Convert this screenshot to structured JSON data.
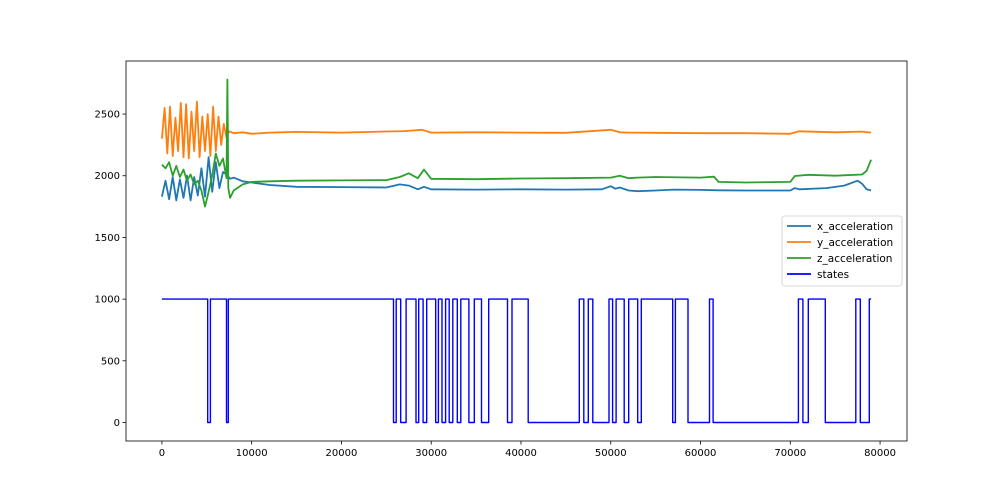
{
  "chart_data": {
    "type": "line",
    "title": "",
    "xlabel": "",
    "ylabel": "",
    "xlim": [
      -4000,
      83000
    ],
    "ylim": [
      -150,
      2930
    ],
    "xticks": [
      0,
      10000,
      20000,
      30000,
      40000,
      50000,
      60000,
      70000,
      80000
    ],
    "yticks": [
      0,
      500,
      1000,
      1500,
      2000,
      2500
    ],
    "grid": false,
    "legend_position": "center-right",
    "series": [
      {
        "name": "x_acceleration",
        "color": "#1f77b4",
        "x": [
          0,
          400,
          800,
          1200,
          1600,
          2000,
          2400,
          2800,
          3200,
          3600,
          4000,
          4400,
          4800,
          5200,
          5600,
          6000,
          6400,
          6800,
          7200,
          7600,
          8000,
          9000,
          10000,
          12000,
          15000,
          20000,
          25000,
          26500,
          27500,
          28500,
          29200,
          30000,
          35000,
          40000,
          45000,
          49000,
          50000,
          50500,
          51000,
          52000,
          53000,
          55000,
          57000,
          60000,
          62000,
          65000,
          70000,
          70500,
          71000,
          74000,
          76000,
          77500,
          78000,
          78500,
          79000
        ],
        "values": [
          1830,
          1960,
          1810,
          1990,
          1800,
          1970,
          1820,
          2000,
          1800,
          1990,
          1840,
          2060,
          1830,
          2150,
          1870,
          2110,
          1900,
          2030,
          2010,
          1975,
          1985,
          1955,
          1945,
          1925,
          1910,
          1908,
          1905,
          1930,
          1920,
          1890,
          1910,
          1890,
          1888,
          1890,
          1888,
          1890,
          1915,
          1895,
          1905,
          1880,
          1875,
          1880,
          1888,
          1885,
          1882,
          1880,
          1880,
          1900,
          1890,
          1900,
          1920,
          1960,
          1935,
          1890,
          1880
        ]
      },
      {
        "name": "y_acceleration",
        "color": "#ff7f0e",
        "x": [
          0,
          300,
          600,
          900,
          1200,
          1500,
          1800,
          2100,
          2400,
          2700,
          3000,
          3300,
          3600,
          3900,
          4200,
          4500,
          4800,
          5100,
          5400,
          5700,
          6000,
          6300,
          6600,
          6900,
          7200,
          7500,
          8000,
          9000,
          10000,
          12000,
          15000,
          20000,
          27000,
          29000,
          30000,
          35000,
          40000,
          45000,
          50000,
          51000,
          52000,
          55000,
          60000,
          65000,
          70000,
          71000,
          75000,
          78000,
          79000
        ],
        "values": [
          2300,
          2550,
          2180,
          2560,
          2160,
          2470,
          2200,
          2590,
          2150,
          2580,
          2140,
          2520,
          2200,
          2600,
          2150,
          2480,
          2200,
          2500,
          2160,
          2560,
          2200,
          2480,
          2250,
          2420,
          2310,
          2360,
          2345,
          2352,
          2340,
          2350,
          2355,
          2350,
          2362,
          2372,
          2350,
          2352,
          2350,
          2348,
          2372,
          2352,
          2350,
          2348,
          2345,
          2345,
          2340,
          2360,
          2352,
          2358,
          2350
        ]
      },
      {
        "name": "z_acceleration",
        "color": "#2ca02c",
        "x": [
          0,
          400,
          800,
          1200,
          1600,
          2000,
          2400,
          2800,
          3200,
          3600,
          4000,
          4400,
          4800,
          5200,
          5600,
          6000,
          6400,
          6800,
          7200,
          7300,
          7400,
          7600,
          8000,
          9000,
          10000,
          12000,
          15000,
          20000,
          25000,
          26500,
          27500,
          28500,
          29200,
          30000,
          35000,
          40000,
          45000,
          50000,
          51000,
          52000,
          53000,
          55000,
          60000,
          61500,
          62000,
          65000,
          70000,
          70500,
          72000,
          75000,
          78000,
          78500,
          79000
        ],
        "values": [
          2090,
          2060,
          2110,
          2000,
          2080,
          1990,
          2050,
          1960,
          2010,
          1930,
          1960,
          1880,
          1750,
          1870,
          2000,
          2180,
          2080,
          2140,
          1980,
          2780,
          1900,
          1820,
          1880,
          1930,
          1950,
          1955,
          1960,
          1962,
          1965,
          1990,
          2020,
          1980,
          2050,
          1975,
          1972,
          1978,
          1980,
          1985,
          2000,
          1980,
          1985,
          1990,
          1985,
          1992,
          1950,
          1945,
          1950,
          1998,
          2008,
          2000,
          2010,
          2040,
          2130
        ]
      },
      {
        "name": "states",
        "color": "#0000ff",
        "x": [
          0,
          5100,
          5100,
          5400,
          5400,
          7200,
          7200,
          7400,
          7400,
          25800,
          25800,
          26100,
          26100,
          26600,
          26600,
          27200,
          27200,
          28300,
          28300,
          28600,
          28600,
          29100,
          29100,
          29500,
          29500,
          30500,
          30500,
          30800,
          30800,
          31200,
          31200,
          31600,
          31600,
          32000,
          32000,
          32400,
          32400,
          32900,
          32900,
          33300,
          33300,
          34200,
          34200,
          34800,
          34800,
          35600,
          35600,
          36400,
          36400,
          38500,
          38500,
          39000,
          39000,
          40800,
          40800,
          46500,
          46500,
          47000,
          47000,
          47500,
          47500,
          48000,
          48000,
          49800,
          49800,
          50200,
          50200,
          50600,
          50600,
          51500,
          51500,
          52000,
          52000,
          53000,
          53000,
          53400,
          53400,
          56900,
          56900,
          57200,
          57200,
          58600,
          58600,
          61000,
          61000,
          61400,
          61400,
          70900,
          70900,
          71400,
          71400,
          72000,
          72000,
          73900,
          73900,
          77300,
          77300,
          77800,
          77800,
          78800,
          78800,
          79000
        ],
        "values": [
          1000,
          1000,
          0,
          0,
          1000,
          1000,
          0,
          0,
          1000,
          1000,
          0,
          0,
          1000,
          1000,
          0,
          0,
          1000,
          1000,
          0,
          0,
          1000,
          1000,
          0,
          0,
          1000,
          1000,
          0,
          0,
          1000,
          1000,
          0,
          0,
          1000,
          1000,
          0,
          0,
          1000,
          1000,
          0,
          0,
          1000,
          1000,
          0,
          0,
          1000,
          1000,
          0,
          0,
          1000,
          1000,
          0,
          0,
          1000,
          1000,
          0,
          0,
          1000,
          1000,
          0,
          0,
          1000,
          1000,
          0,
          0,
          1000,
          1000,
          0,
          0,
          1000,
          1000,
          0,
          0,
          1000,
          1000,
          0,
          0,
          1000,
          1000,
          0,
          0,
          1000,
          1000,
          0,
          0,
          1000,
          1000,
          0,
          0,
          1000,
          1000,
          0,
          0,
          1000,
          1000,
          0,
          0,
          1000,
          1000,
          0,
          0,
          1000,
          1000
        ]
      }
    ]
  }
}
